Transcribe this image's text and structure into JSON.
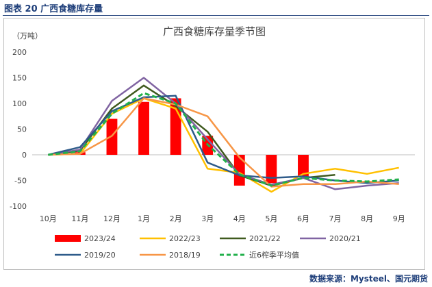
{
  "header": {
    "figure_title": "图表 20  广西食糖库存量"
  },
  "footer": {
    "source": "数据来源：Mysteel、国元期货"
  },
  "chart_data": {
    "type": "bar+line",
    "title": "广西食糖库存量季节图",
    "unit_label": "（万吨）",
    "categories": [
      "10月",
      "11月",
      "12月",
      "1月",
      "2月",
      "3月",
      "4月",
      "5月",
      "6月",
      "7月",
      "8月",
      "9月"
    ],
    "ylim": [
      -100,
      200
    ],
    "yticks": [
      -100,
      -50,
      0,
      50,
      100,
      150,
      200
    ],
    "grid": false,
    "legend_position": "bottom",
    "bar_series": {
      "name": "2023/24",
      "color": "#ff0000",
      "values": [
        0,
        5,
        70,
        103,
        110,
        37,
        -60,
        -55,
        -42,
        null,
        null,
        null
      ]
    },
    "line_series": [
      {
        "name": "2022/23",
        "color": "#ffc000",
        "dash": false,
        "values": [
          0,
          2,
          80,
          110,
          90,
          -27,
          -35,
          -72,
          -37,
          -27,
          -37,
          -25
        ]
      },
      {
        "name": "2021/22",
        "color": "#3f5a1e",
        "dash": false,
        "values": [
          0,
          8,
          90,
          135,
          95,
          45,
          -40,
          -60,
          -45,
          -39,
          null,
          null
        ]
      },
      {
        "name": "2020/21",
        "color": "#8064a2",
        "dash": false,
        "values": [
          0,
          10,
          105,
          150,
          100,
          30,
          -38,
          -58,
          -45,
          -67,
          -60,
          -55
        ]
      },
      {
        "name": "2019/20",
        "color": "#2e5b8a",
        "dash": false,
        "values": [
          0,
          15,
          85,
          112,
          115,
          -15,
          -40,
          -45,
          -42,
          -50,
          -55,
          -50
        ]
      },
      {
        "name": "2018/19",
        "color": "#f79646",
        "dash": false,
        "values": [
          0,
          2,
          37,
          110,
          98,
          75,
          -5,
          -62,
          -57,
          -57,
          -52,
          -57
        ]
      },
      {
        "name": "近6榨季平均值",
        "color": "#22b04b",
        "dash": true,
        "values": [
          0,
          7,
          80,
          120,
          100,
          20,
          -38,
          -60,
          -45,
          -50,
          -52,
          -48
        ]
      }
    ]
  }
}
